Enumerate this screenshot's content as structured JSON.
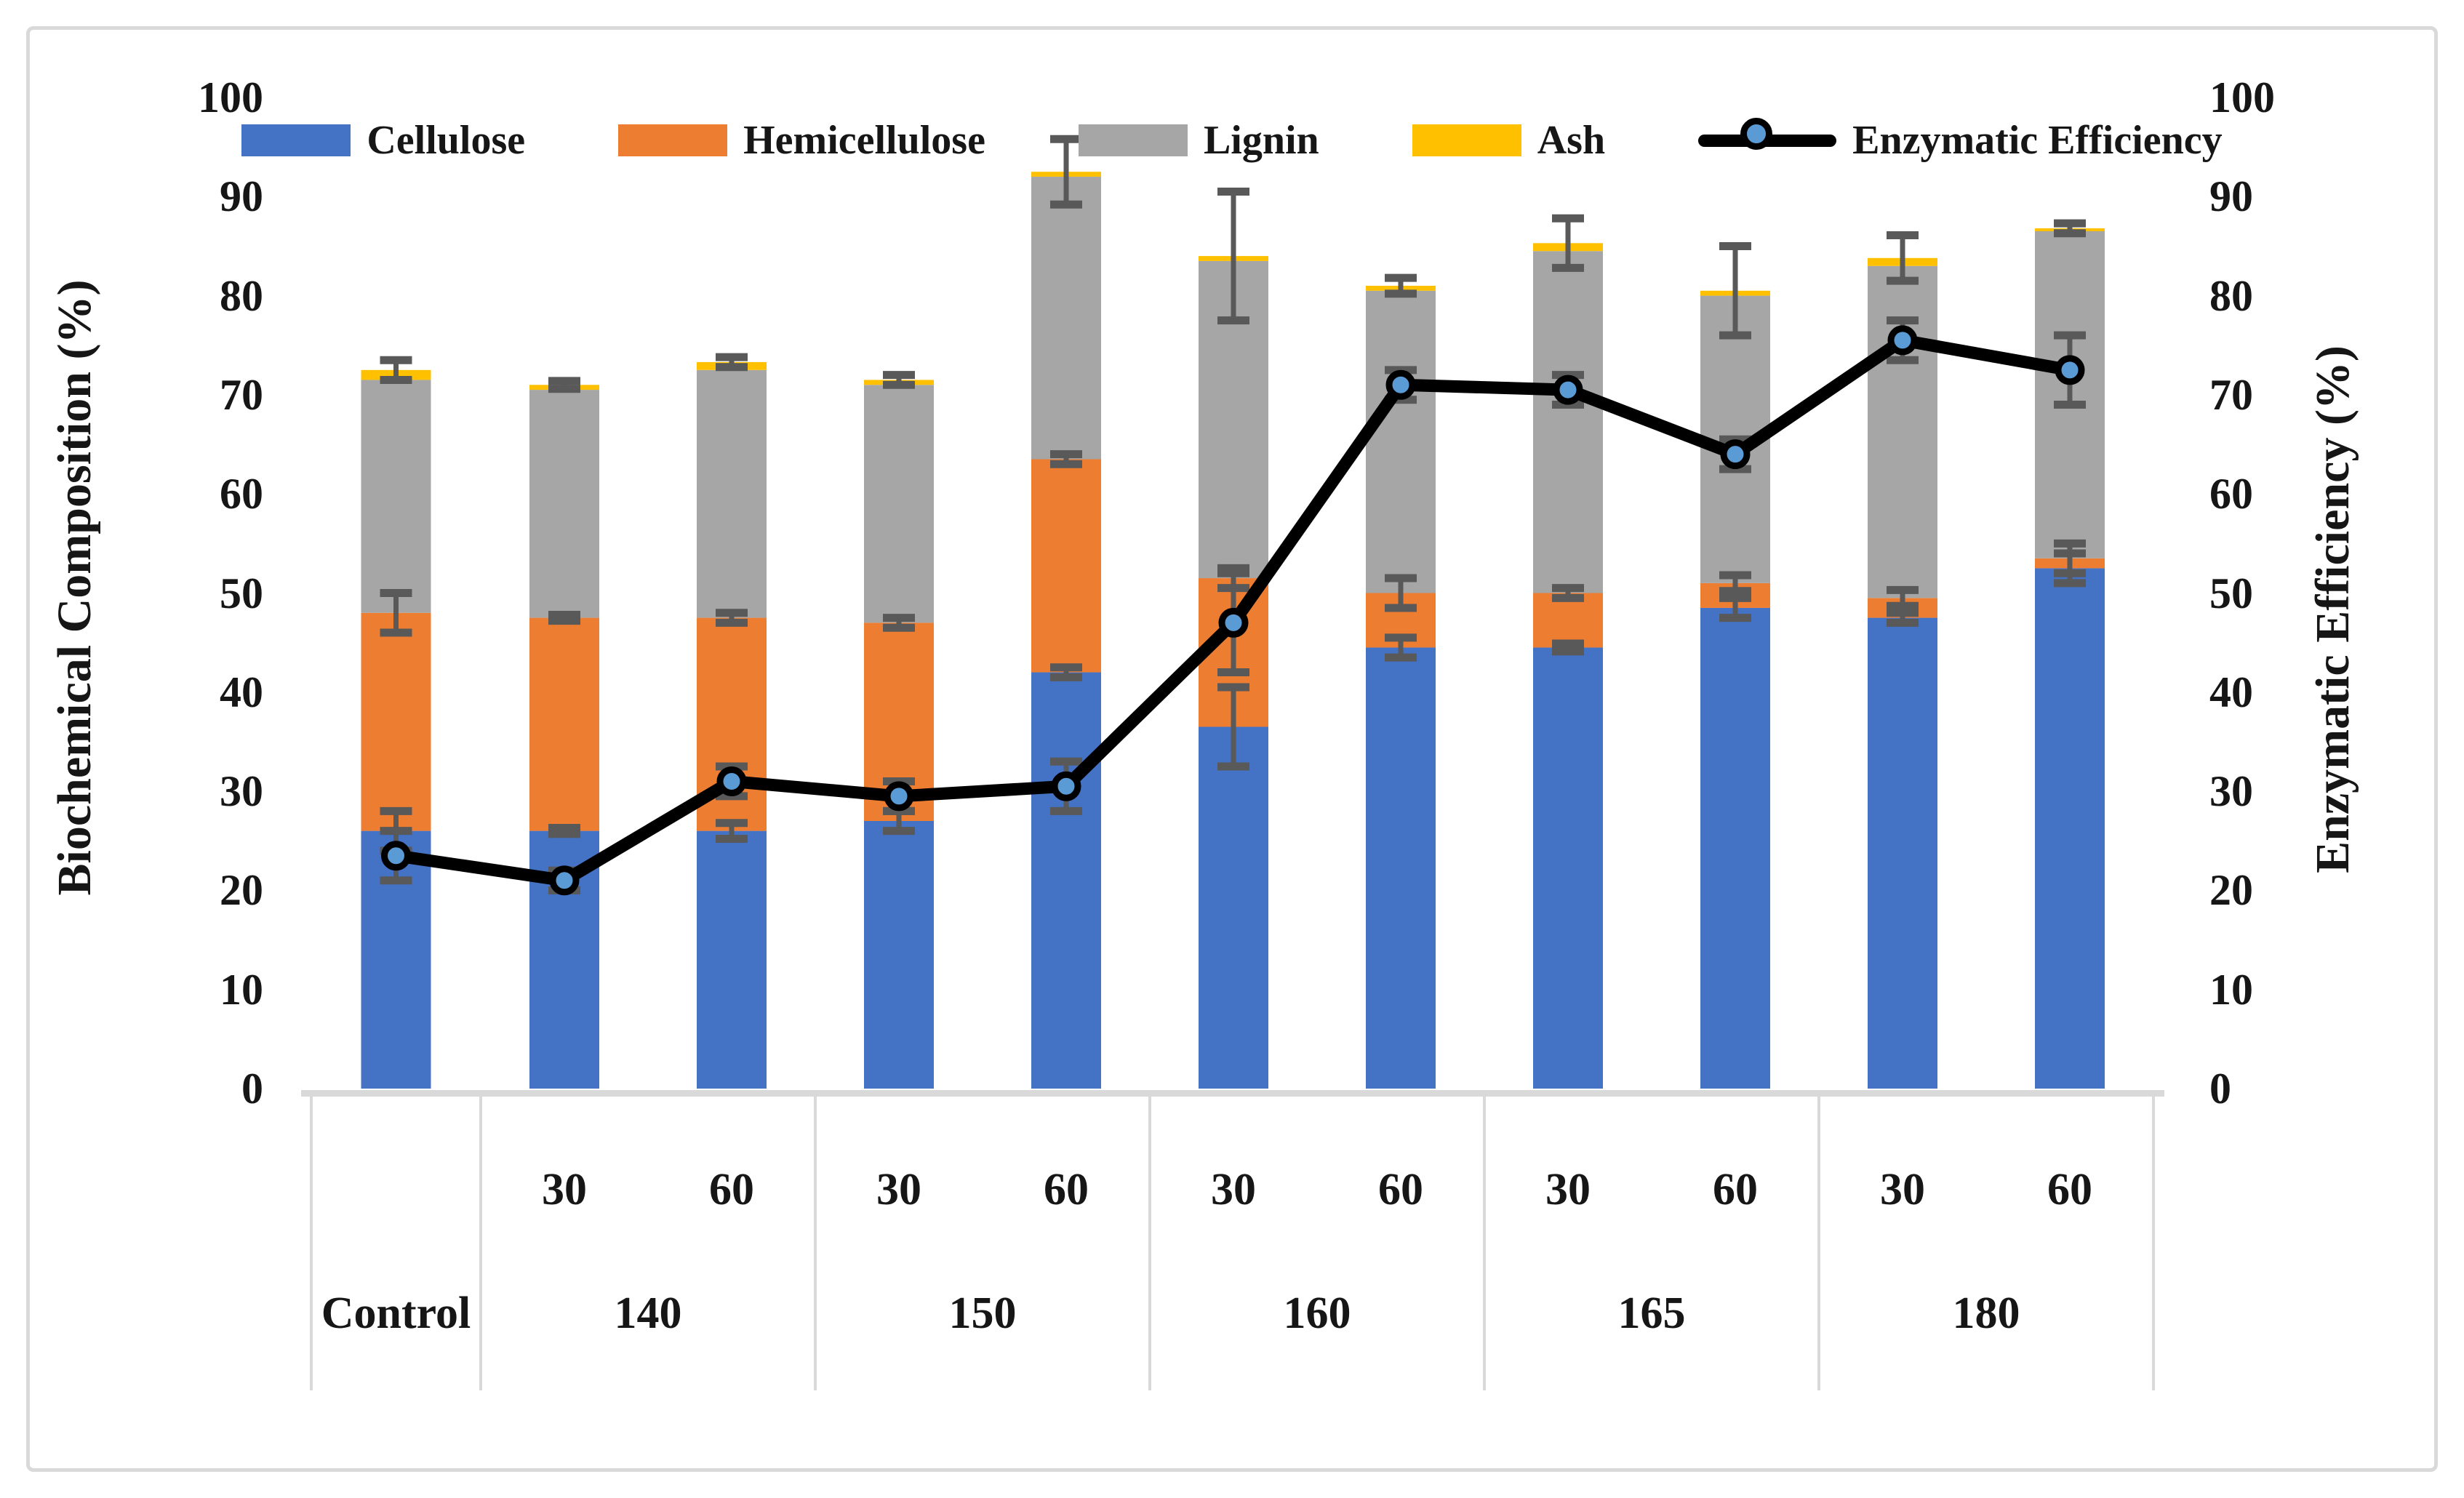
{
  "chart_data": {
    "type": "bar",
    "subtype": "stacked-bar-with-line-overlay",
    "title": "",
    "left_axis": {
      "title": "Biochemical Composition (%)",
      "min": 0,
      "max": 100,
      "step": 10,
      "ticks": [
        "0",
        "10",
        "20",
        "30",
        "40",
        "50",
        "60",
        "70",
        "80",
        "90",
        "100"
      ]
    },
    "right_axis": {
      "title": "Enzymatic Efficiency (%)",
      "min": 0,
      "max": 100,
      "step": 10,
      "ticks": [
        "0",
        "10",
        "20",
        "30",
        "40",
        "50",
        "60",
        "70",
        "80",
        "90",
        "100"
      ]
    },
    "category_axis": {
      "groups": [
        {
          "label": "Control",
          "times": [
            ""
          ]
        },
        {
          "label": "140",
          "times": [
            "30",
            "60"
          ]
        },
        {
          "label": "150",
          "times": [
            "30",
            "60"
          ]
        },
        {
          "label": "160",
          "times": [
            "30",
            "60"
          ]
        },
        {
          "label": "165",
          "times": [
            "30",
            "60"
          ]
        },
        {
          "label": "180",
          "times": [
            "30",
            "60"
          ]
        }
      ]
    },
    "bar_series": [
      {
        "name": "Cellulose",
        "color": "#4472C4",
        "values": [
          26,
          26,
          26,
          27,
          42,
          36.5,
          44.5,
          44.5,
          48.5,
          47.5,
          52.5
        ],
        "errors": [
          2,
          0.3,
          0.8,
          1,
          0.5,
          4,
          1,
          0.4,
          1,
          0.5,
          1.5
        ]
      },
      {
        "name": "Hemicellulose",
        "color": "#ED7D31",
        "values": [
          22,
          21.5,
          21.5,
          20,
          21.5,
          15,
          5.5,
          5.5,
          2.5,
          2,
          1
        ],
        "errors": [
          2,
          0.3,
          0.5,
          0.5,
          0.5,
          1,
          1.5,
          0.5,
          0.8,
          0.8,
          1.5
        ]
      },
      {
        "name": "Lignin",
        "color": "#A6A6A6",
        "values": [
          23.5,
          23,
          25,
          24,
          28.5,
          32,
          30.5,
          34.5,
          29,
          33.5,
          33
        ],
        "errors": [
          1,
          0.4,
          0.5,
          0.5,
          3.3,
          6.5,
          0.8,
          2.5,
          4.5,
          2.3,
          0.5
        ]
      },
      {
        "name": "Ash",
        "color": "#FFC000",
        "values": [
          1,
          0.5,
          0.8,
          0.5,
          0.5,
          0.5,
          0.5,
          0.8,
          0.5,
          0.8,
          0.3
        ],
        "errors": null
      }
    ],
    "line_series": {
      "name": "Enzymatic Efficiency",
      "color": "#000000",
      "marker_fill": "#5B9BD5",
      "values": [
        23.5,
        21,
        31,
        29.5,
        30.5,
        47,
        71,
        70.5,
        64,
        75.5,
        72.5
      ],
      "errors": [
        2.5,
        1,
        1.5,
        1.5,
        2.5,
        5,
        1.5,
        1.5,
        1.5,
        2,
        3.5
      ]
    },
    "style": {
      "error_bar_color": "#595959",
      "axis_line_color": "#D9D9D9",
      "legend_position": "top",
      "grid": "off"
    }
  }
}
